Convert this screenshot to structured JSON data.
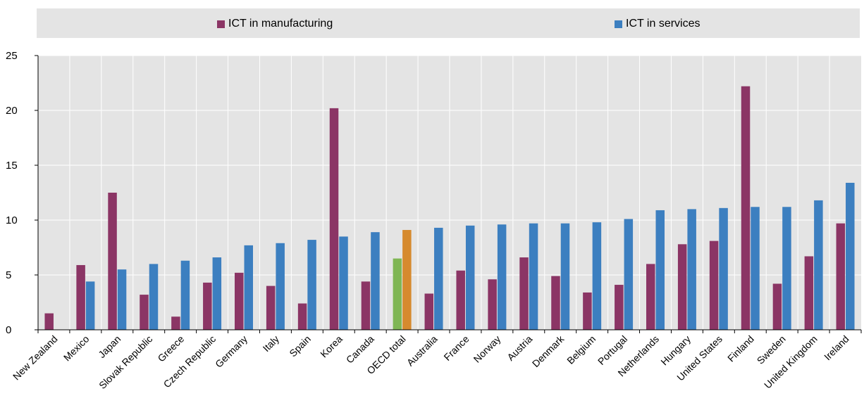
{
  "chart_data": {
    "type": "bar",
    "title": "",
    "xlabel": "",
    "ylabel": "",
    "ylim": [
      0,
      25
    ],
    "yticks": [
      0,
      5,
      10,
      15,
      20,
      25
    ],
    "grid": true,
    "legend_position": "top",
    "categories": [
      "New Zealand",
      "Mexico",
      "Japan",
      "Slovak Republic",
      "Greece",
      "Czech Republic",
      "Germany",
      "Italy",
      "Spain",
      "Korea",
      "Canada",
      "OECD total",
      "Australia",
      "France",
      "Norway",
      "Austria",
      "Denmark",
      "Belgium",
      "Portugal",
      "Netherlands",
      "Hungary",
      "United States",
      "Finland",
      "Sweden",
      "United Kingdom",
      "Ireland"
    ],
    "series": [
      {
        "name": "ICT in manufacturing",
        "color": "#8b3565",
        "values": [
          1.5,
          5.9,
          12.5,
          3.2,
          1.2,
          4.3,
          5.2,
          4.0,
          2.4,
          20.2,
          4.4,
          6.5,
          3.3,
          5.4,
          4.6,
          6.6,
          4.9,
          3.4,
          4.1,
          6.0,
          7.8,
          8.1,
          22.2,
          4.2,
          6.7,
          9.7
        ]
      },
      {
        "name": "ICT in services",
        "color": "#3c7fc0",
        "values": [
          0,
          4.4,
          5.5,
          6.0,
          6.3,
          6.6,
          7.7,
          7.9,
          8.2,
          8.5,
          8.9,
          9.1,
          9.3,
          9.5,
          9.6,
          9.7,
          9.7,
          9.8,
          10.1,
          10.9,
          11.0,
          11.1,
          11.2,
          11.2,
          11.8,
          13.4
        ]
      }
    ],
    "highlight": {
      "category": "OECD total",
      "colors": [
        "#7fb654",
        "#d68a2e"
      ]
    },
    "plot_background": "#e4e4e4",
    "grid_color": "#ffffff"
  }
}
